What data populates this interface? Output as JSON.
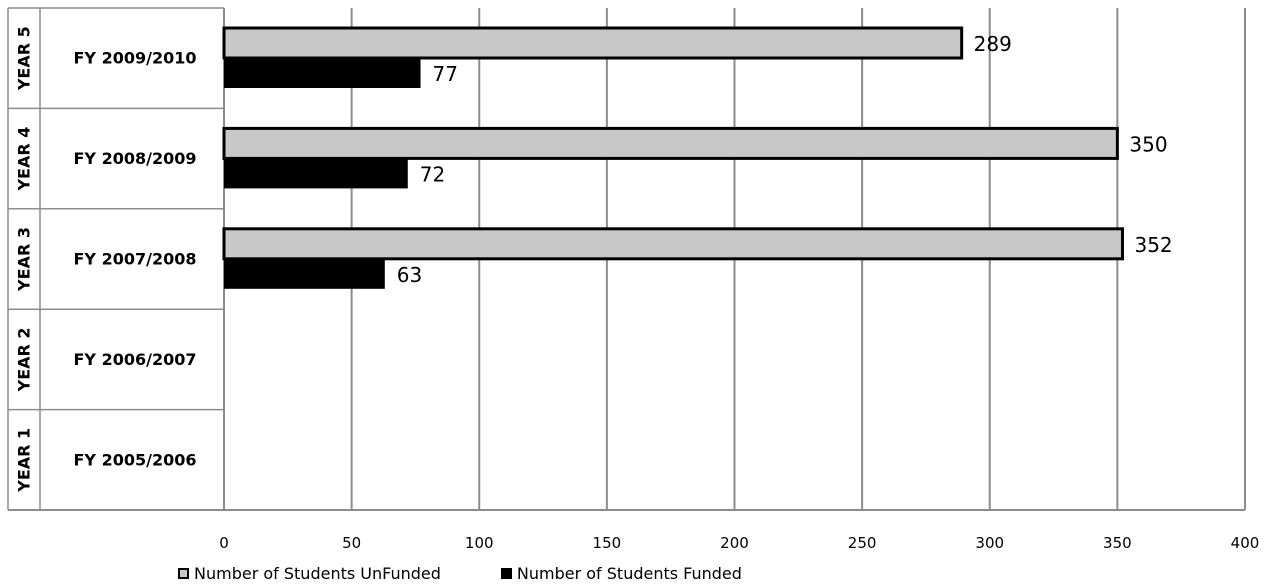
{
  "chart_data": {
    "type": "bar",
    "orientation": "horizontal",
    "title": "",
    "xlabel": "",
    "ylabel": "",
    "xlim": [
      0,
      400
    ],
    "xticks": [
      0,
      50,
      100,
      150,
      200,
      250,
      300,
      350,
      400
    ],
    "grid": true,
    "legend_position": "bottom",
    "categories": [
      {
        "year": "YEAR 5",
        "fy": "FY 2009/2010"
      },
      {
        "year": "YEAR 4",
        "fy": "FY 2008/2009"
      },
      {
        "year": "YEAR 3",
        "fy": "FY 2007/2008"
      },
      {
        "year": "YEAR 2",
        "fy": "FY 2006/2007"
      },
      {
        "year": "YEAR 1",
        "fy": "FY 2005/2006"
      }
    ],
    "series": [
      {
        "name": "Number of Students UnFunded",
        "color": "#c8c8c8",
        "values": [
          289,
          350,
          352,
          null,
          null
        ]
      },
      {
        "name": "Number of Students Funded",
        "color": "#000000",
        "values": [
          77,
          72,
          63,
          null,
          null
        ]
      }
    ]
  }
}
